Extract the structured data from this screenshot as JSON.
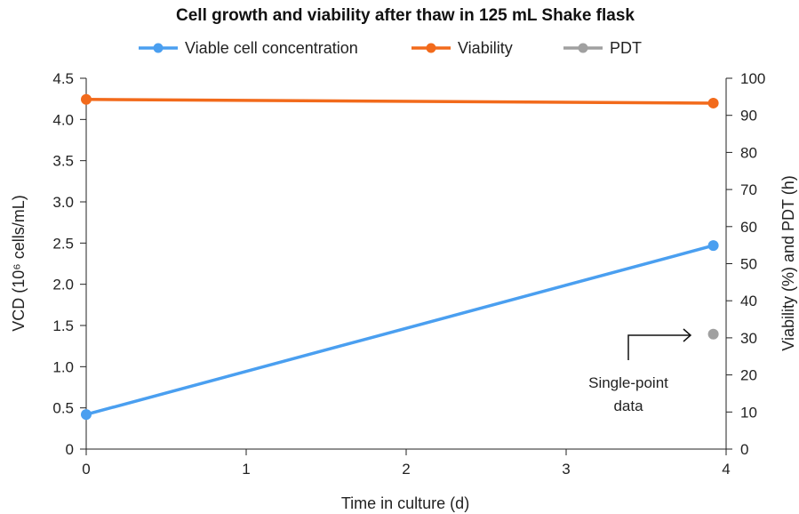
{
  "chart_data": {
    "type": "line",
    "title": "Cell growth and viability after thaw in 125 mL Shake flask",
    "xlabel": "Time in culture (d)",
    "ylabel": "VCD (10⁶ cells/mL)",
    "ylabel_right": "Viability (%) and PDT (h)",
    "xlim": [
      0,
      4
    ],
    "ylim": [
      0,
      4.5
    ],
    "ylim_right": [
      0,
      100
    ],
    "x_ticks": [
      "0",
      "1",
      "2",
      "3",
      "4"
    ],
    "y_ticks": [
      "0",
      "0.5",
      "1.0",
      "1.5",
      "2.0",
      "2.5",
      "3.0",
      "3.5",
      "4.0",
      "4.5"
    ],
    "y_ticks_right": [
      "0",
      "10",
      "20",
      "30",
      "40",
      "50",
      "60",
      "70",
      "80",
      "90",
      "100"
    ],
    "grid": false,
    "legend_position": "top",
    "series": [
      {
        "name": "Viable cell concentration",
        "axis": "left",
        "color": "#4a9ff0",
        "x": [
          0,
          3.92
        ],
        "y": [
          0.42,
          2.47
        ]
      },
      {
        "name": "Viability",
        "axis": "right",
        "color": "#f26a1b",
        "x": [
          0,
          3.92
        ],
        "y": [
          94.3,
          93.3
        ]
      },
      {
        "name": "PDT",
        "axis": "right",
        "color": "#a0a0a0",
        "x": [
          3.92
        ],
        "y": [
          31
        ]
      }
    ],
    "annotations": [
      {
        "lines": [
          "Single-point",
          "data"
        ],
        "target_series": "PDT"
      }
    ]
  }
}
